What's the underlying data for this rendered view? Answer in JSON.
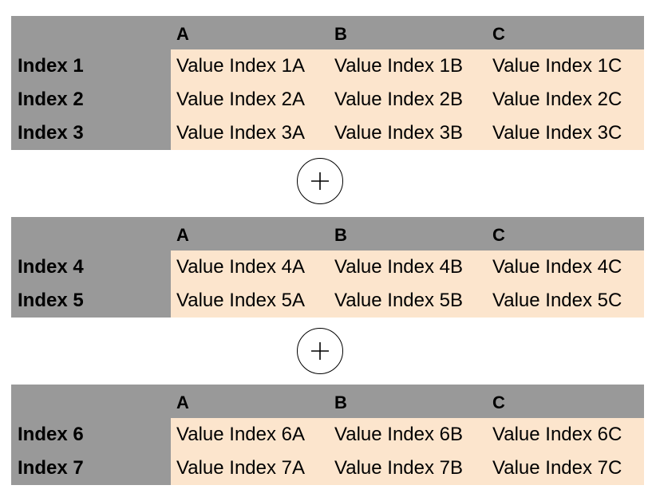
{
  "columns": [
    "A",
    "B",
    "C"
  ],
  "tables": [
    {
      "rows": [
        {
          "index": "Index 1",
          "values": [
            "Value Index 1A",
            "Value Index 1B",
            "Value Index 1C"
          ]
        },
        {
          "index": "Index 2",
          "values": [
            "Value Index 2A",
            "Value Index 2B",
            "Value Index 2C"
          ]
        },
        {
          "index": "Index 3",
          "values": [
            "Value Index 3A",
            "Value Index 3B",
            "Value Index 3C"
          ]
        }
      ]
    },
    {
      "rows": [
        {
          "index": "Index 4",
          "values": [
            "Value Index 4A",
            "Value Index 4B",
            "Value Index 4C"
          ]
        },
        {
          "index": "Index 5",
          "values": [
            "Value Index 5A",
            "Value Index 5B",
            "Value Index 5C"
          ]
        }
      ]
    },
    {
      "rows": [
        {
          "index": "Index 6",
          "values": [
            "Value Index 6A",
            "Value Index 6B",
            "Value Index 6C"
          ]
        },
        {
          "index": "Index 7",
          "values": [
            "Value Index 7A",
            "Value Index 7B",
            "Value Index 7C"
          ]
        }
      ]
    }
  ],
  "connector_icon": "plus-circle-icon",
  "colors": {
    "header_bg": "#999999",
    "value_bg": "#fce5cd",
    "text": "#000000"
  }
}
